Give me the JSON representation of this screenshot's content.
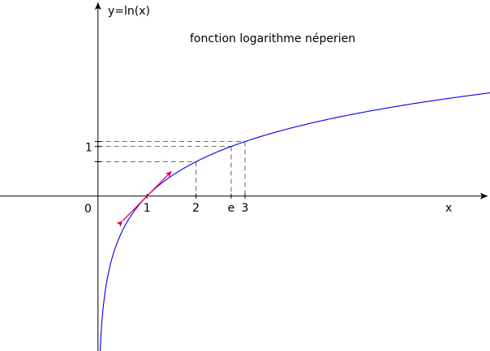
{
  "chart_data": {
    "type": "line",
    "title": "fonction logarithme néperien",
    "xlabel": "x",
    "ylabel": "y=ln(x)",
    "function": "ln(x)",
    "xlim": [
      -2.0,
      8.0
    ],
    "ylim": [
      -3.12,
      3.95
    ],
    "origin_label": "0",
    "x_ticks": [
      {
        "value": 1,
        "label": "1"
      },
      {
        "value": 2,
        "label": "2"
      },
      {
        "value": 2.718,
        "label": "e"
      },
      {
        "value": 3,
        "label": "3"
      }
    ],
    "y_ticks": [
      {
        "value": 0.693,
        "label": ""
      },
      {
        "value": 1.0,
        "label": "1"
      },
      {
        "value": 1.099,
        "label": ""
      }
    ],
    "guide_points": [
      {
        "x": 2,
        "y": 0.693
      },
      {
        "x": 2.718,
        "y": 1.0
      },
      {
        "x": 3,
        "y": 1.099
      }
    ],
    "tangent": {
      "at_x": 1,
      "slope": 1,
      "from_x": 0.5,
      "to_x": 1.5
    },
    "colors": {
      "curve": "#0000ee",
      "tangent": "#e0004a",
      "axes": "#000000",
      "guides": "#555555"
    },
    "grid": false
  }
}
